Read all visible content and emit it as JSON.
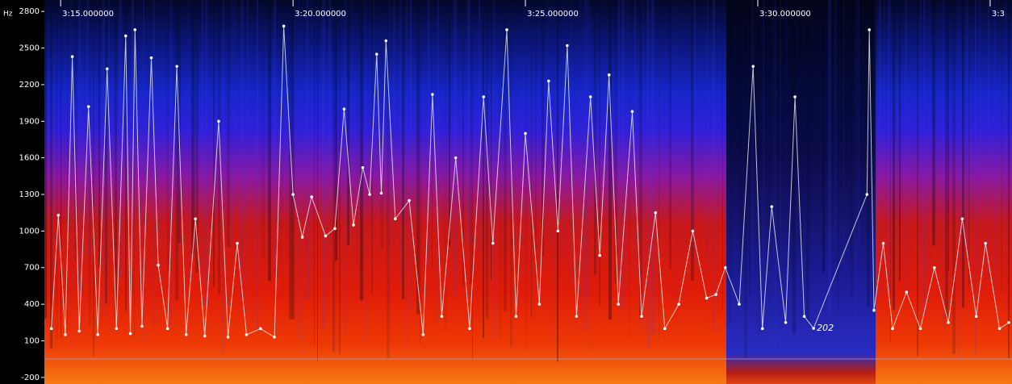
{
  "chart_data": {
    "type": "spectrogram",
    "y_unit": "Hz",
    "xlim": [
      194.65,
      215.47
    ],
    "ylim": [
      -254,
      2894
    ],
    "xticks": [
      {
        "value": 195,
        "label": "3:15.000000"
      },
      {
        "value": 200,
        "label": "3:20.000000"
      },
      {
        "value": 205,
        "label": "3:25.000000"
      },
      {
        "value": 210,
        "label": "3:30.000000"
      },
      {
        "value": 215,
        "label": "3:3"
      }
    ],
    "yticks": [
      -200,
      100,
      400,
      700,
      1000,
      1300,
      1600,
      1900,
      2200,
      2500,
      2800
    ],
    "series": [
      {
        "color": "#ffffff",
        "x": [
          194.8,
          194.95,
          195.1,
          195.25,
          195.4,
          195.6,
          195.8,
          196.0,
          196.2,
          196.4,
          196.5,
          196.6,
          196.75,
          196.95,
          197.1,
          197.3,
          197.5,
          197.7,
          197.9,
          198.1,
          198.4,
          198.6,
          198.8,
          199.0,
          199.3,
          199.6,
          199.8,
          200.0,
          200.2,
          200.4,
          200.7,
          200.9,
          201.1,
          201.3,
          201.5,
          201.65,
          201.8,
          201.9,
          202.0,
          202.2,
          202.5,
          202.8,
          203.0,
          203.2,
          203.5,
          203.8,
          204.1,
          204.3,
          204.6,
          204.8,
          205.0,
          205.3,
          205.5,
          205.7,
          205.9,
          206.1,
          206.4,
          206.6,
          206.8,
          207.0,
          207.3,
          207.5,
          207.8,
          208.0,
          208.3,
          208.6,
          208.9,
          209.1,
          209.3,
          209.6,
          209.9,
          210.1,
          210.3,
          210.6,
          210.8,
          211.0,
          211.2,
          212.35,
          212.4,
          212.5,
          212.7,
          212.9,
          213.2,
          213.5,
          213.8,
          214.1,
          214.4,
          214.7,
          214.9,
          215.2,
          215.4
        ],
        "values": [
          200,
          1130,
          150,
          2430,
          180,
          2020,
          150,
          2330,
          200,
          2600,
          160,
          2650,
          220,
          2420,
          720,
          200,
          2350,
          150,
          1100,
          140,
          1900,
          130,
          900,
          150,
          200,
          130,
          2680,
          1300,
          950,
          1280,
          960,
          1020,
          2000,
          1050,
          1520,
          1300,
          2450,
          1310,
          2560,
          1100,
          1250,
          150,
          2120,
          300,
          1600,
          200,
          2100,
          900,
          2650,
          300,
          1800,
          400,
          2230,
          1000,
          2520,
          300,
          2100,
          800,
          2280,
          400,
          1980,
          300,
          1150,
          200,
          400,
          1000,
          450,
          480,
          700,
          400,
          2350,
          200,
          1200,
          250,
          2100,
          300,
          202,
          1300,
          2650,
          350,
          900,
          200,
          500,
          200,
          700,
          250,
          1100,
          300,
          900,
          200,
          250
        ]
      }
    ],
    "annotations": [
      {
        "x": 211.2,
        "value": 202
      }
    ]
  }
}
